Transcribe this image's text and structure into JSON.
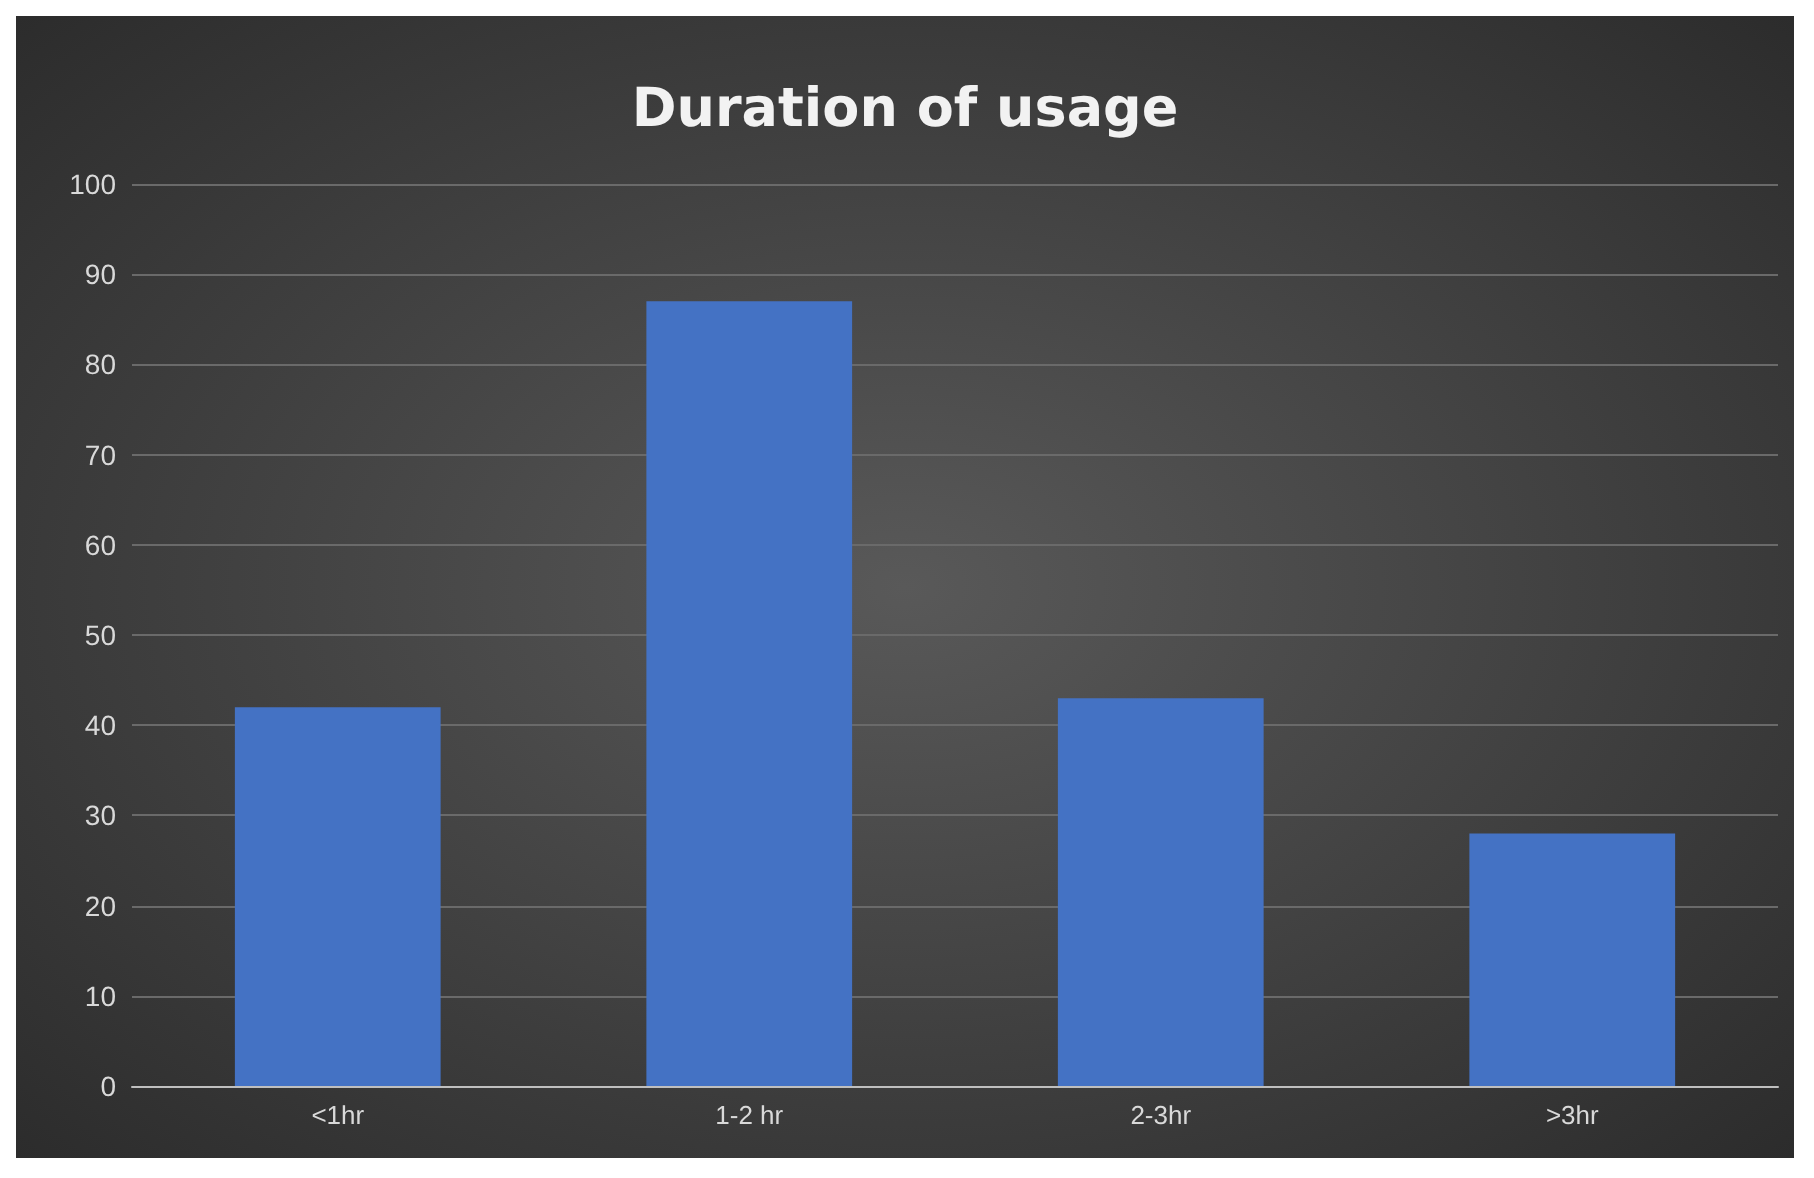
{
  "chart_data": {
    "type": "bar",
    "title": "Duration of usage",
    "categories": [
      "<1hr",
      "1-2 hr",
      "2-3hr",
      ">3hr"
    ],
    "values": [
      42,
      87,
      43,
      28
    ],
    "color": "#4472c4",
    "ylim": [
      0,
      100
    ],
    "yticks": [
      0,
      10,
      20,
      30,
      40,
      50,
      60,
      70,
      80,
      90,
      100
    ],
    "grid": "y"
  }
}
